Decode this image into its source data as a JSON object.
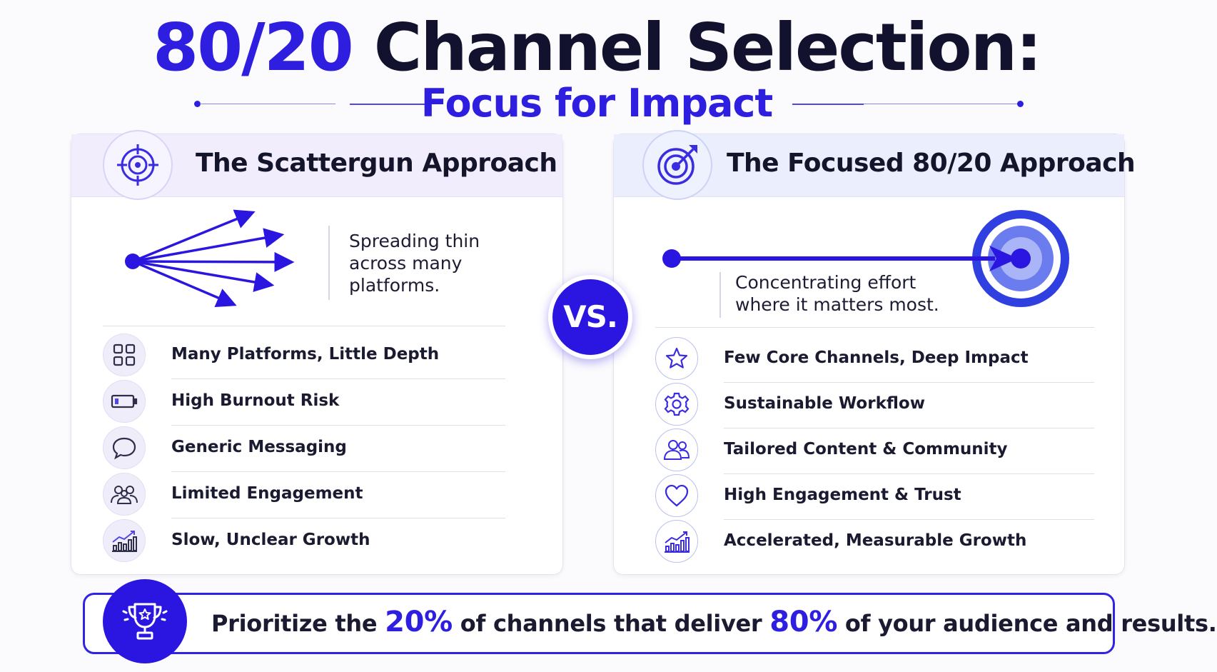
{
  "title": {
    "accent": "80/20",
    "rest": " Channel Selection:"
  },
  "subtitle": "Focus for Impact",
  "left_panel": {
    "title": "The Scattergun Approach",
    "header_icon": "crosshair-icon",
    "description": [
      "Spreading thin",
      "across many",
      "platforms."
    ],
    "items": [
      {
        "label": "Many Platforms, Little Depth",
        "icon": "grid-icon"
      },
      {
        "label": "High Burnout Risk",
        "icon": "battery-low-icon"
      },
      {
        "label": "Generic Messaging",
        "icon": "chat-bubble-icon"
      },
      {
        "label": "Limited Engagement",
        "icon": "group-icon"
      },
      {
        "label": "Slow, Unclear Growth",
        "icon": "growth-chart-icon"
      }
    ]
  },
  "vs_label": "VS.",
  "right_panel": {
    "title": "The Focused 80/20 Approach",
    "header_icon": "target-arrow-icon",
    "description": [
      "Concentrating effort",
      "where it matters most."
    ],
    "items": [
      {
        "label": "Few Core Channels, Deep Impact",
        "icon": "star-icon"
      },
      {
        "label": "Sustainable Workflow",
        "icon": "gear-icon"
      },
      {
        "label": "Tailored Content & Community",
        "icon": "people-icon"
      },
      {
        "label": "High Engagement & Trust",
        "icon": "heart-icon"
      },
      {
        "label": "Accelerated, Measurable Growth",
        "icon": "growth-chart-icon"
      }
    ]
  },
  "banner": {
    "icon": "trophy-icon",
    "part1": "Prioritize the ",
    "highlight1": "20%",
    "part2": " of channels that deliver ",
    "highlight2": "80%",
    "part3": " of your audience and results."
  },
  "colors": {
    "accent": "#2d1ee0",
    "dark": "#12122e",
    "left_header": "#f1edfd",
    "right_header": "#ebeefd"
  }
}
